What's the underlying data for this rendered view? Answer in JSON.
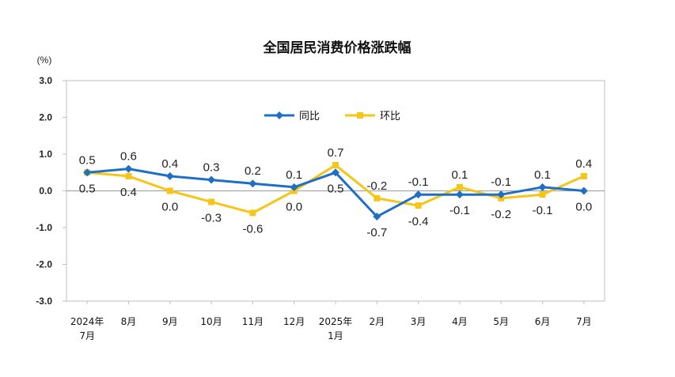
{
  "chart_data": {
    "type": "line",
    "title": "全国居民消费价格涨跌幅",
    "unit_label": "(%)",
    "ylim": [
      -3.0,
      3.0
    ],
    "yticks": [
      "3.0",
      "2.0",
      "1.0",
      "0.0",
      "-1.0",
      "-2.0",
      "-3.0"
    ],
    "ytick_values": [
      3,
      2,
      1,
      0,
      -1,
      -2,
      -3
    ],
    "categories": [
      [
        "2024年",
        "7月"
      ],
      [
        "8月"
      ],
      [
        "9月"
      ],
      [
        "10月"
      ],
      [
        "11月"
      ],
      [
        "12月"
      ],
      [
        "2025年",
        "1月"
      ],
      [
        "2月"
      ],
      [
        "3月"
      ],
      [
        "4月"
      ],
      [
        "5月"
      ],
      [
        "6月"
      ],
      [
        "7月"
      ]
    ],
    "legend_position": "top-center",
    "series": [
      {
        "name": "同比",
        "color": "#1F6FC6",
        "marker": "diamond",
        "values": [
          0.5,
          0.6,
          0.4,
          0.3,
          0.2,
          0.1,
          0.5,
          -0.7,
          -0.1,
          -0.1,
          -0.1,
          0.1,
          0.0
        ],
        "labels": [
          "0.5",
          "0.6",
          "0.4",
          "0.3",
          "0.2",
          "0.1",
          "0.5",
          "-0.7",
          "-0.1",
          "-0.1",
          "-0.1",
          "0.1",
          "0.0"
        ]
      },
      {
        "name": "环比",
        "color": "#F5C518",
        "marker": "square",
        "values": [
          0.5,
          0.4,
          0.0,
          -0.3,
          -0.6,
          0.0,
          0.7,
          -0.2,
          -0.4,
          0.1,
          -0.2,
          -0.1,
          0.4
        ],
        "labels": [
          "0.5",
          "0.4",
          "0.0",
          "-0.3",
          "-0.6",
          "0.0",
          "0.7",
          "-0.2",
          "-0.4",
          "0.1",
          "-0.2",
          "-0.1",
          "0.4"
        ]
      }
    ]
  }
}
